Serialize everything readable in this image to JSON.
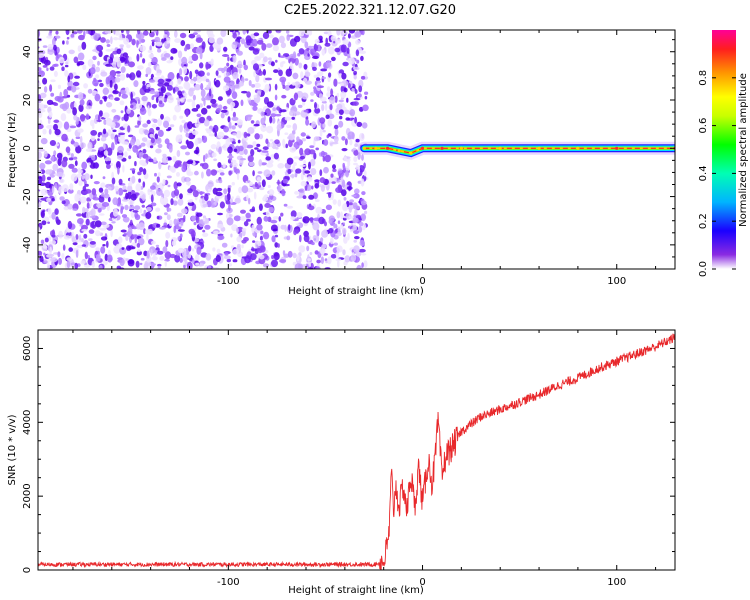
{
  "title": "C2E5.2022.321.12.07.G20",
  "chart_data": [
    {
      "type": "heatmap",
      "xlabel": "Height of straight line (km)",
      "ylabel": "Frequency (Hz)",
      "xlim": [
        -198,
        130
      ],
      "ylim": [
        -50,
        49
      ],
      "x_ticks": [
        -100,
        0,
        100
      ],
      "y_ticks": [
        -40,
        -20,
        0,
        20,
        40
      ],
      "grid": false,
      "colorbar": {
        "label": "Normalized spectral amplitude",
        "range": [
          0,
          1
        ],
        "ticks": [
          0.0,
          0.2,
          0.4,
          0.6,
          0.8
        ],
        "colormap": [
          "#f5f0ff",
          "#c9a6ff",
          "#8a2be2",
          "#3a00ff",
          "#0040ff",
          "#00bfff",
          "#00ffb0",
          "#00ff00",
          "#a0ff00",
          "#ffff00",
          "#ffb000",
          "#ff4000",
          "#ff0050",
          "#ff0090"
        ]
      },
      "noise_region": {
        "x_start": -198,
        "x_end": -30,
        "amplitude_range": [
          0.0,
          0.2
        ]
      },
      "signal_ridge": {
        "frequency_hz": 0,
        "points": [
          {
            "x": -30,
            "y": 0,
            "amplitude": 0.6
          },
          {
            "x": -24,
            "y": 0,
            "amplitude": 0.8
          },
          {
            "x": -18,
            "y": 0,
            "amplitude": 0.85
          },
          {
            "x": -12,
            "y": -1,
            "amplitude": 0.7
          },
          {
            "x": -6,
            "y": -2,
            "amplitude": 0.75
          },
          {
            "x": 0,
            "y": 0,
            "amplitude": 0.9
          },
          {
            "x": 10,
            "y": 0,
            "amplitude": 0.85
          },
          {
            "x": 20,
            "y": 0,
            "amplitude": 0.8
          },
          {
            "x": 40,
            "y": 0,
            "amplitude": 0.7
          },
          {
            "x": 60,
            "y": 0,
            "amplitude": 0.75
          },
          {
            "x": 80,
            "y": 0,
            "amplitude": 0.8
          },
          {
            "x": 100,
            "y": 0,
            "amplitude": 0.85
          },
          {
            "x": 130,
            "y": 0,
            "amplitude": 0.85
          }
        ]
      }
    },
    {
      "type": "line",
      "xlabel": "Height of straight line (km)",
      "ylabel": "SNR (10 * v/v)",
      "xlim": [
        -198,
        130
      ],
      "ylim": [
        0,
        6500
      ],
      "x_ticks": [
        -100,
        0,
        100
      ],
      "y_ticks": [
        0,
        2000,
        4000,
        6000
      ],
      "grid": false,
      "series": [
        {
          "color": "#e8282b",
          "x": [
            -198,
            -180,
            -160,
            -140,
            -120,
            -100,
            -80,
            -60,
            -40,
            -25,
            -20,
            -18,
            -17,
            -16,
            -15,
            -14,
            -12,
            -10,
            -8,
            -6,
            -4,
            -2,
            0,
            3,
            5,
            7,
            8,
            10,
            12,
            15,
            20,
            25,
            30,
            40,
            50,
            60,
            70,
            80,
            90,
            100,
            110,
            120,
            130
          ],
          "y": [
            150,
            150,
            150,
            150,
            150,
            150,
            150,
            150,
            150,
            150,
            220,
            700,
            1200,
            2700,
            1500,
            2300,
            1700,
            2300,
            1600,
            2600,
            1700,
            2800,
            1800,
            3000,
            2300,
            3300,
            4050,
            2500,
            3100,
            3300,
            3750,
            3950,
            4150,
            4350,
            4550,
            4750,
            5000,
            5200,
            5450,
            5650,
            5850,
            6050,
            6300
          ]
        }
      ]
    }
  ]
}
